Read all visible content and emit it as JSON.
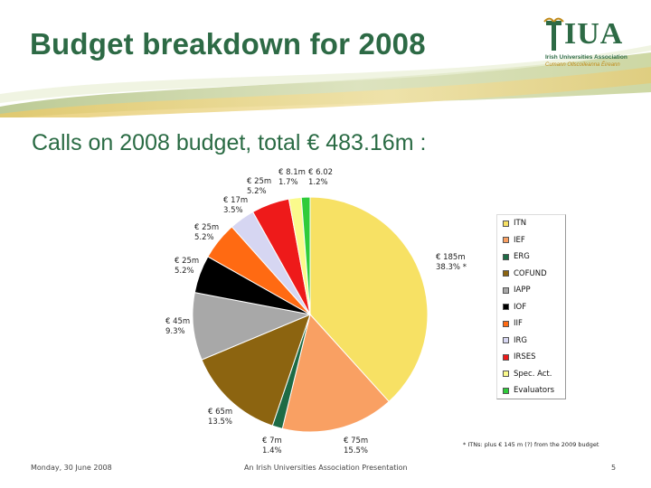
{
  "slide": {
    "title": "Budget breakdown for 2008",
    "subtitle": "Calls on 2008 budget, total € 483.16m :"
  },
  "logo": {
    "text": "IUA",
    "line1": "Irish Universities Association",
    "line2": "Cumann Ollscoileanna Éireann"
  },
  "chart_data": {
    "type": "pie",
    "title": "Calls on 2008 budget, total € 483.16m",
    "total": "€ 483.16m",
    "slices": [
      {
        "name": "ITN",
        "amount": "€ 185m",
        "percent": "38.3% *",
        "value": 38.3,
        "color": "#f7e164"
      },
      {
        "name": "IEF",
        "amount": "€ 75m",
        "percent": "15.5%",
        "value": 15.5,
        "color": "#f9a063"
      },
      {
        "name": "ERG",
        "amount": "€ 7m",
        "percent": "1.4%",
        "value": 1.4,
        "color": "#1d6b45"
      },
      {
        "name": "COFUND",
        "amount": "€ 65m",
        "percent": "13.5%",
        "value": 13.5,
        "color": "#8c6410"
      },
      {
        "name": "IAPP",
        "amount": "€ 45m",
        "percent": "9.3%",
        "value": 9.3,
        "color": "#a8a8a8"
      },
      {
        "name": "IOF",
        "amount": "€ 25m",
        "percent": "5.2%",
        "value": 5.2,
        "color": "#000000"
      },
      {
        "name": "IIF",
        "amount": "€ 25m",
        "percent": "5.2%",
        "value": 5.2,
        "color": "#ff6a12"
      },
      {
        "name": "IRG",
        "amount": "€ 17m",
        "percent": "3.5%",
        "value": 3.5,
        "color": "#d6d6f2"
      },
      {
        "name": "IRSES",
        "amount": "€ 25m",
        "percent": "5.2%",
        "value": 5.2,
        "color": "#ee1a1a"
      },
      {
        "name": "Spec. Act.",
        "amount": "€ 8.1m",
        "percent": "1.7%",
        "value": 1.7,
        "color": "#fafa8c"
      },
      {
        "name": "Evaluators",
        "amount": "€ 6.02",
        "percent": "1.2%",
        "value": 1.2,
        "color": "#2ecc3a"
      }
    ],
    "legend": [
      "ITN",
      "IEF",
      "ERG",
      "COFUND",
      "IAPP",
      "IOF",
      "IIF",
      "IRG",
      "IRSES",
      "Spec. Act.",
      "Evaluators"
    ],
    "legend_position": "right",
    "footnote": "* ITNs: plus € 145 m (?) from the 2009 budget"
  },
  "footer": {
    "date": "Monday, 30 June 2008",
    "presenter": "An Irish Universities Association Presentation",
    "page": "5"
  }
}
